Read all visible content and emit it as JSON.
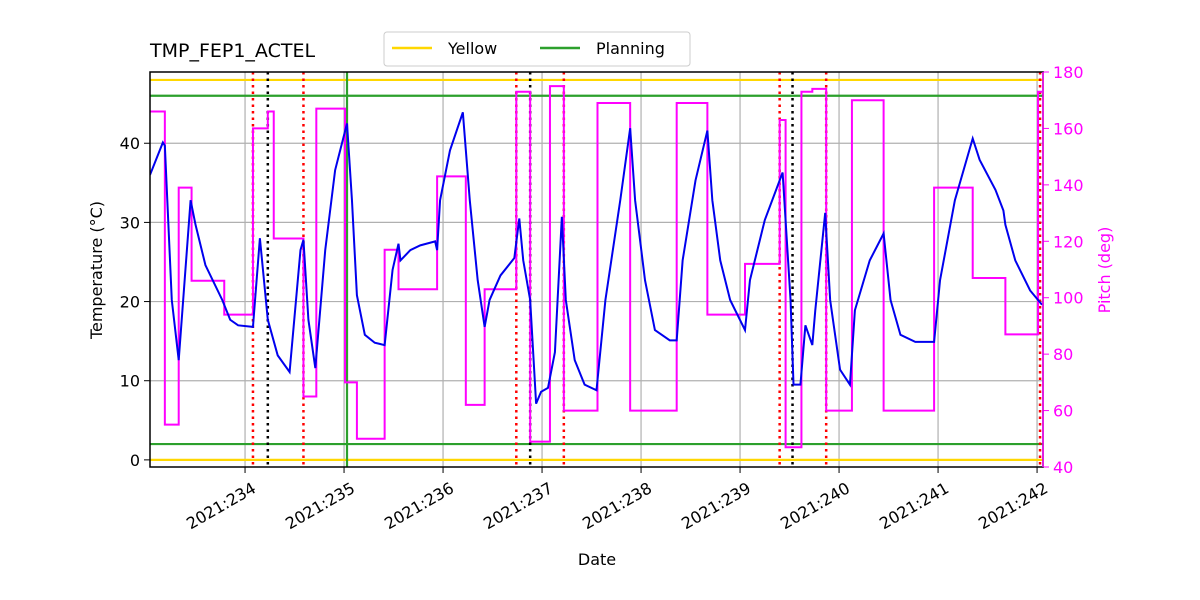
{
  "chart_data": {
    "type": "line",
    "title": "TMP_FEP1_ACTEL",
    "x_label": "Date",
    "y_label": "Temperature (°C)",
    "y2_label": "Pitch (deg)",
    "y2_color": "#ff00ff",
    "xlim": [
      233.04,
      242.06
    ],
    "xticks": [
      {
        "value": 234,
        "label": "2021:234"
      },
      {
        "value": 235,
        "label": "2021:235"
      },
      {
        "value": 236,
        "label": "2021:236"
      },
      {
        "value": 237,
        "label": "2021:237"
      },
      {
        "value": 238,
        "label": "2021:238"
      },
      {
        "value": 239,
        "label": "2021:239"
      },
      {
        "value": 240,
        "label": "2021:240"
      },
      {
        "value": 241,
        "label": "2021:241"
      },
      {
        "value": 242,
        "label": "2021:242"
      }
    ],
    "ylim": [
      -0.9,
      49.0
    ],
    "yticks": [
      0,
      10,
      20,
      30,
      40
    ],
    "y2lim": [
      40,
      180
    ],
    "y2ticks": [
      40,
      60,
      80,
      100,
      120,
      140,
      160,
      180
    ],
    "grid": true,
    "series": [
      {
        "color": "#0000ee",
        "x": [
          233.04,
          233.17,
          233.19,
          233.26,
          233.33,
          233.39,
          233.45,
          233.5,
          233.6,
          233.77,
          233.85,
          233.93,
          234.08,
          234.15,
          234.23,
          234.33,
          234.45,
          234.56,
          234.59,
          234.64,
          234.71,
          234.81,
          234.91,
          235.03,
          235.08,
          235.13,
          235.21,
          235.31,
          235.41,
          235.49,
          235.55,
          235.57,
          235.67,
          235.77,
          235.92,
          235.94,
          235.97,
          236.07,
          236.2,
          236.27,
          236.35,
          236.42,
          236.47,
          236.58,
          236.72,
          236.77,
          236.81,
          236.88,
          236.94,
          236.99,
          237.06,
          237.13,
          237.2,
          237.24,
          237.33,
          237.43,
          237.55,
          237.64,
          237.79,
          237.89,
          237.94,
          238.04,
          238.14,
          238.29,
          238.36,
          238.42,
          238.55,
          238.67,
          238.72,
          238.8,
          238.9,
          239.05,
          239.1,
          239.25,
          239.43,
          239.51,
          239.54,
          239.61,
          239.66,
          239.73,
          239.76,
          239.86,
          239.91,
          240.01,
          240.11,
          240.16,
          240.31,
          240.45,
          240.52,
          240.62,
          240.77,
          240.96,
          241.02,
          241.17,
          241.35,
          241.42,
          241.58,
          241.66,
          241.68,
          241.78,
          241.93,
          242.05
        ],
        "values": [
          36.0,
          40.1,
          39.7,
          20.2,
          12.6,
          22.7,
          32.8,
          29.7,
          24.6,
          20.2,
          17.7,
          17.0,
          16.8,
          28.0,
          17.7,
          13.2,
          11.1,
          26.5,
          27.8,
          17.7,
          11.6,
          26.5,
          36.6,
          42.5,
          32.8,
          20.8,
          15.8,
          14.8,
          14.5,
          24.0,
          27.3,
          25.2,
          26.5,
          27.1,
          27.6,
          26.5,
          32.8,
          39.1,
          43.9,
          32.8,
          22.7,
          16.8,
          20.2,
          23.3,
          25.5,
          30.5,
          25.2,
          20.2,
          7.1,
          8.6,
          9.1,
          13.6,
          30.7,
          20.2,
          12.6,
          9.5,
          8.8,
          20.2,
          32.8,
          41.9,
          32.8,
          22.7,
          16.4,
          15.1,
          15.1,
          25.2,
          35.3,
          41.6,
          32.8,
          25.2,
          20.2,
          16.4,
          22.7,
          30.3,
          36.3,
          20.2,
          9.5,
          9.5,
          17.0,
          14.5,
          18.9,
          31.2,
          20.2,
          11.4,
          9.5,
          18.9,
          25.2,
          28.6,
          20.2,
          15.8,
          14.9,
          14.9,
          22.7,
          32.8,
          40.6,
          37.9,
          34.1,
          31.5,
          29.7,
          25.2,
          21.4,
          19.6
        ]
      },
      {
        "color": "#ff00ff",
        "axis": "y2",
        "x": [
          233.04,
          233.19,
          233.19,
          233.33,
          233.33,
          233.46,
          233.46,
          233.79,
          233.79,
          234.08,
          234.08,
          234.23,
          234.23,
          234.29,
          234.29,
          234.59,
          234.59,
          234.72,
          234.72,
          235.01,
          235.01,
          235.13,
          235.13,
          235.41,
          235.41,
          235.55,
          235.55,
          235.94,
          235.94,
          236.23,
          236.23,
          236.42,
          236.42,
          236.74,
          236.74,
          236.88,
          236.88,
          237.08,
          237.08,
          237.22,
          237.22,
          237.56,
          237.56,
          237.89,
          237.89,
          238.36,
          238.36,
          238.67,
          238.67,
          239.05,
          239.05,
          239.4,
          239.4,
          239.46,
          239.46,
          239.62,
          239.62,
          239.73,
          239.73,
          239.87,
          239.87,
          240.13,
          240.13,
          240.45,
          240.45,
          240.96,
          240.96,
          241.35,
          241.35,
          241.68,
          241.68,
          242.01,
          242.01,
          242.05
        ],
        "values": [
          166,
          166,
          55,
          55,
          139,
          139,
          106,
          106,
          94,
          94,
          160,
          160,
          166,
          166,
          121,
          121,
          65,
          65,
          167,
          167,
          70,
          70,
          50,
          50,
          117,
          117,
          103,
          103,
          143,
          143,
          62,
          62,
          103,
          103,
          173,
          173,
          49,
          49,
          175,
          175,
          60,
          60,
          169,
          169,
          60,
          60,
          169,
          169,
          94,
          94,
          112,
          112,
          163,
          163,
          47,
          47,
          173,
          173,
          174,
          174,
          60,
          60,
          170,
          170,
          60,
          60,
          139,
          139,
          107,
          107,
          87,
          87,
          173,
          173
        ]
      }
    ],
    "limits": [
      {
        "name": "Yellow",
        "color": "#ffd700",
        "values": [
          48,
          0
        ]
      },
      {
        "name": "Planning",
        "color": "#2ca02c",
        "values": [
          46,
          2
        ]
      }
    ],
    "vlines": [
      {
        "color": "#ff0000",
        "style": "dotted",
        "x": [
          234.08,
          234.59,
          236.74,
          237.22,
          239.4,
          239.87,
          242.03
        ]
      },
      {
        "color": "#000000",
        "style": "dotted",
        "x": [
          234.23,
          236.88,
          239.53
        ]
      },
      {
        "color": "#2ca02c",
        "style": "solid",
        "x": [
          235.03
        ]
      }
    ],
    "legend": "top"
  }
}
